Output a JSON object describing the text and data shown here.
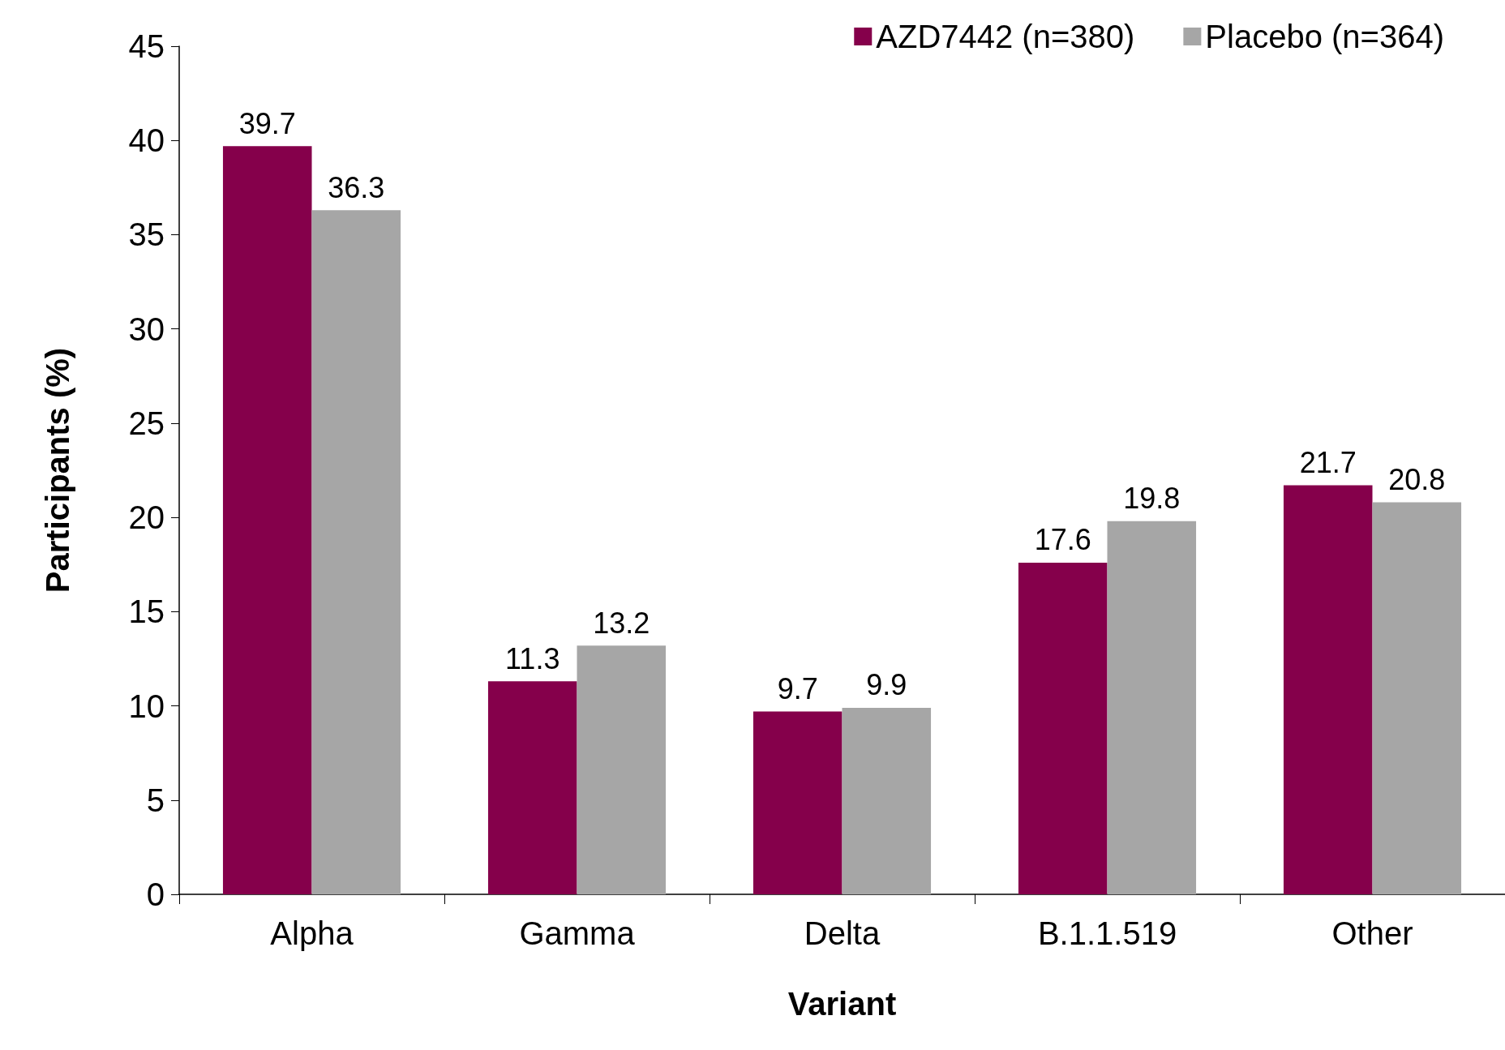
{
  "chart_data": {
    "type": "bar",
    "xlabel": "Variant",
    "ylabel": "Participants (%)",
    "categories": [
      "Alpha",
      "Gamma",
      "Delta",
      "B.1.1.519",
      "Other"
    ],
    "series": [
      {
        "name": "AZD7442 (n=380)",
        "color": "#85004b",
        "values": [
          39.7,
          11.3,
          9.7,
          17.6,
          21.7
        ]
      },
      {
        "name": "Placebo (n=364)",
        "color": "#a6a6a6",
        "values": [
          36.3,
          13.2,
          9.9,
          19.8,
          20.8
        ]
      }
    ],
    "ylim": [
      0,
      45
    ],
    "yticks": [
      0,
      5,
      10,
      15,
      20,
      25,
      30,
      35,
      40,
      45
    ],
    "grid": false,
    "legend": "top right",
    "data_labels": true
  }
}
